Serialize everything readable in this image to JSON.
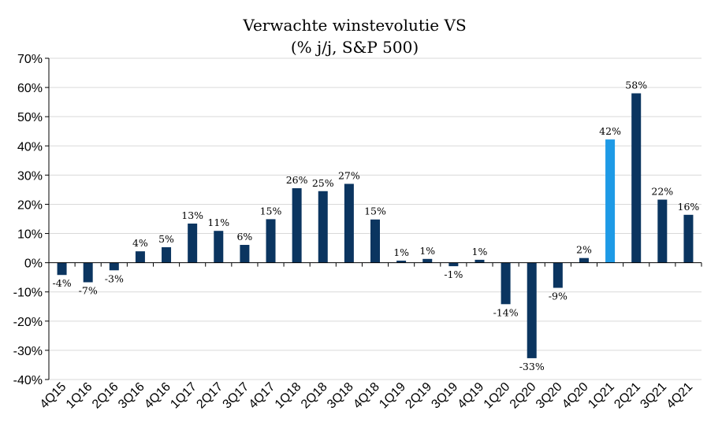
{
  "chart_data": {
    "type": "bar",
    "title": "Verwachte winstevolutie VS",
    "subtitle": "(% j/j, S&P 500)",
    "xlabel": "",
    "ylabel": "",
    "ylim": [
      -40,
      70
    ],
    "ytick_step": 10,
    "ytick_labels": [
      "-40%",
      "-30%",
      "-20%",
      "-10%",
      "0%",
      "10%",
      "20%",
      "30%",
      "40%",
      "50%",
      "60%",
      "70%"
    ],
    "grid": true,
    "legend": "none",
    "categories": [
      "4Q15",
      "1Q16",
      "2Q16",
      "3Q16",
      "4Q16",
      "1Q17",
      "2Q17",
      "3Q17",
      "4Q17",
      "1Q18",
      "2Q18",
      "3Q18",
      "4Q18",
      "1Q19",
      "2Q19",
      "3Q19",
      "4Q19",
      "1Q20",
      "2Q20",
      "3Q20",
      "4Q20",
      "1Q21",
      "2Q21",
      "3Q21",
      "4Q21"
    ],
    "values": [
      -4.2,
      -6.7,
      -2.6,
      3.9,
      5.3,
      13.4,
      10.9,
      6.1,
      14.9,
      25.5,
      24.5,
      27.0,
      14.8,
      0.7,
      1.3,
      -1.2,
      1.0,
      -14.2,
      -32.7,
      -8.6,
      1.6,
      42.2,
      58.0,
      21.6,
      16.4
    ],
    "data_labels": [
      "-4%",
      "-7%",
      "-3%",
      "4%",
      "5%",
      "13%",
      "11%",
      "6%",
      "15%",
      "26%",
      "25%",
      "27%",
      "15%",
      "1%",
      "1%",
      "-1%",
      "1%",
      "-14%",
      "-33%",
      "-9%",
      "2%",
      "42%",
      "58%",
      "22%",
      "16%"
    ],
    "highlight_index": 21,
    "colors": {
      "bar": "#0b3560",
      "highlight": "#1e9ae6",
      "grid": "#d9d9d9",
      "axis": "#000000"
    }
  }
}
